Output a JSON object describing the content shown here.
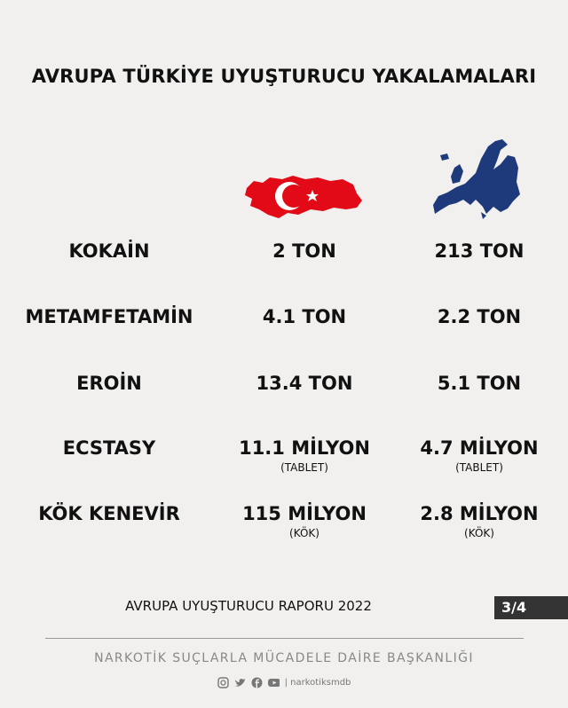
{
  "title": "AVRUPA TÜRKİYE UYUŞTURUCU YAKALAMALARI",
  "columns": [
    {
      "icon": "turkey-flag-map-icon",
      "color": "#e30a17"
    },
    {
      "icon": "europe-map-icon",
      "color": "#1f3a7a"
    }
  ],
  "rows": [
    {
      "label": "KOKAİN",
      "turkey": "2 TON",
      "europe": "213 TON",
      "turkey_note": "",
      "europe_note": ""
    },
    {
      "label": "METAMFETAMİN",
      "turkey": "4.1 TON",
      "europe": "2.2 TON",
      "turkey_note": "",
      "europe_note": ""
    },
    {
      "label": "EROİN",
      "turkey": "13.4 TON",
      "europe": "5.1 TON",
      "turkey_note": "",
      "europe_note": ""
    },
    {
      "label": "ECSTASY",
      "turkey": "11.1 MİLYON",
      "europe": "4.7 MİLYON",
      "turkey_note": "(TABLET)",
      "europe_note": "(TABLET)"
    },
    {
      "label": "KÖK KENEVİR",
      "turkey": "115 MİLYON",
      "europe": "2.8 MİLYON",
      "turkey_note": "(KÖK)",
      "europe_note": "(KÖK)"
    }
  ],
  "footer": {
    "report": "AVRUPA UYUŞTURUCU RAPORU 2022",
    "page": "3/4",
    "org": "NARKOTİK SUÇLARLA MÜCADELE DAİRE BAŞKANLIĞI",
    "handle": "| narkotiksmdb",
    "social_icons": [
      "instagram-icon",
      "twitter-icon",
      "facebook-icon",
      "youtube-icon"
    ]
  }
}
